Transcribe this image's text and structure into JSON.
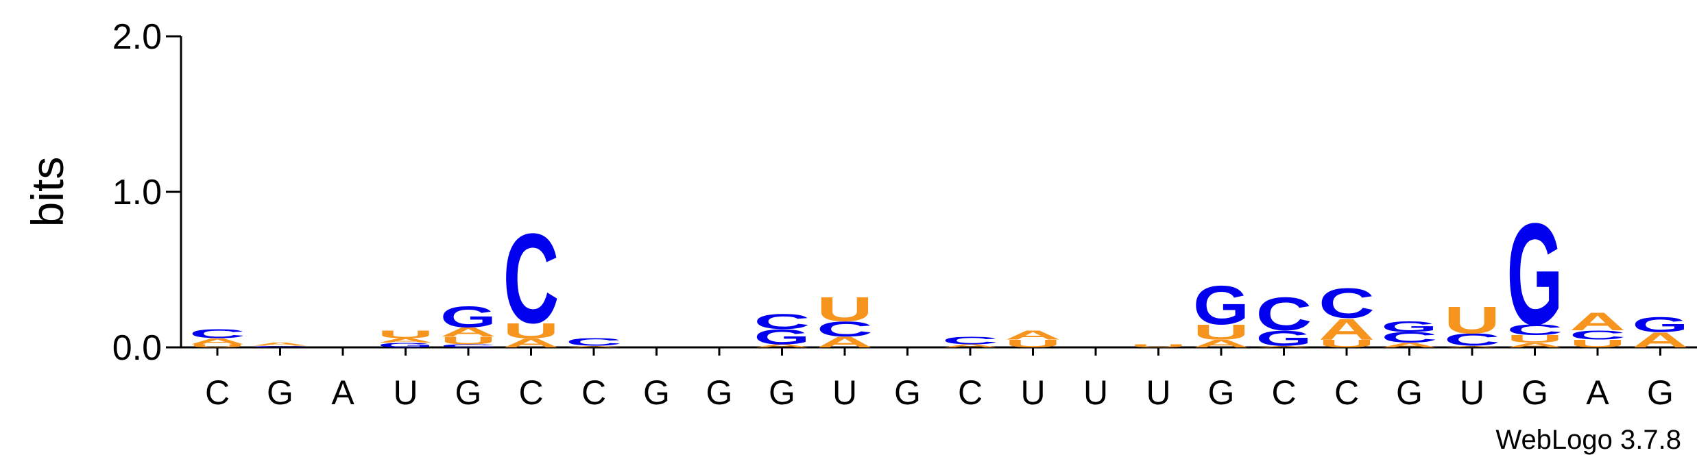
{
  "chart_data": {
    "type": "logo",
    "ylabel": "bits",
    "ylim": [
      0,
      2
    ],
    "yticks": [
      {
        "value": 0,
        "label": "0.0"
      },
      {
        "value": 1,
        "label": "1.0"
      },
      {
        "value": 2,
        "label": "2.0"
      }
    ],
    "categories": [
      "C",
      "G",
      "A",
      "U",
      "G",
      "C",
      "C",
      "G",
      "G",
      "G",
      "U",
      "G",
      "C",
      "U",
      "U",
      "U",
      "G",
      "C",
      "C",
      "G",
      "U",
      "G",
      "A",
      "G"
    ],
    "colors": {
      "A": "#f7941d",
      "U": "#f7941d",
      "C": "#0000ee",
      "G": "#0000ee"
    },
    "stacks": [
      [
        {
          "letter": "U",
          "height": 0.02
        },
        {
          "letter": "A",
          "height": 0.04
        },
        {
          "letter": "C",
          "height": 0.06
        }
      ],
      [
        {
          "letter": "C",
          "height": 0.01
        },
        {
          "letter": "A",
          "height": 0.02
        }
      ],
      [],
      [
        {
          "letter": "G",
          "height": 0.03
        },
        {
          "letter": "A",
          "height": 0.03
        },
        {
          "letter": "U",
          "height": 0.05
        }
      ],
      [
        {
          "letter": "C",
          "height": 0.02
        },
        {
          "letter": "U",
          "height": 0.05
        },
        {
          "letter": "A",
          "height": 0.06
        },
        {
          "letter": "G",
          "height": 0.14
        }
      ],
      [
        {
          "letter": "A",
          "height": 0.06
        },
        {
          "letter": "U",
          "height": 0.1
        },
        {
          "letter": "C",
          "height": 0.6
        }
      ],
      [
        {
          "letter": "A",
          "height": 0.01
        },
        {
          "letter": "C",
          "height": 0.05
        }
      ],
      [],
      [],
      [
        {
          "letter": "A",
          "height": 0.02
        },
        {
          "letter": "G",
          "height": 0.1
        },
        {
          "letter": "C",
          "height": 0.1
        }
      ],
      [
        {
          "letter": "A",
          "height": 0.07
        },
        {
          "letter": "C",
          "height": 0.1
        },
        {
          "letter": "U",
          "height": 0.16
        }
      ],
      [],
      [
        {
          "letter": "A",
          "height": 0.02
        },
        {
          "letter": "C",
          "height": 0.05
        }
      ],
      [
        {
          "letter": "U",
          "height": 0.05
        },
        {
          "letter": "A",
          "height": 0.06
        }
      ],
      [],
      [
        {
          "letter": "U",
          "height": 0.02
        }
      ],
      [
        {
          "letter": "A",
          "height": 0.05
        },
        {
          "letter": "U",
          "height": 0.1
        },
        {
          "letter": "G",
          "height": 0.26
        }
      ],
      [
        {
          "letter": "A",
          "height": 0.01
        },
        {
          "letter": "G",
          "height": 0.1
        },
        {
          "letter": "C",
          "height": 0.22
        }
      ],
      [
        {
          "letter": "U",
          "height": 0.05
        },
        {
          "letter": "A",
          "height": 0.14
        },
        {
          "letter": "C",
          "height": 0.2
        }
      ],
      [
        {
          "letter": "A",
          "height": 0.03
        },
        {
          "letter": "C",
          "height": 0.07
        },
        {
          "letter": "G",
          "height": 0.07
        }
      ],
      [
        {
          "letter": "A",
          "height": 0.01
        },
        {
          "letter": "C",
          "height": 0.08
        },
        {
          "letter": "U",
          "height": 0.18
        }
      ],
      [
        {
          "letter": "A",
          "height": 0.03
        },
        {
          "letter": "U",
          "height": 0.05
        },
        {
          "letter": "C",
          "height": 0.07
        },
        {
          "letter": "G",
          "height": 0.68
        }
      ],
      [
        {
          "letter": "U",
          "height": 0.05
        },
        {
          "letter": "C",
          "height": 0.06
        },
        {
          "letter": "A",
          "height": 0.12
        }
      ],
      [
        {
          "letter": "A",
          "height": 0.1
        },
        {
          "letter": "G",
          "height": 0.1
        }
      ]
    ],
    "footer": "WebLogo 3.7.8"
  }
}
